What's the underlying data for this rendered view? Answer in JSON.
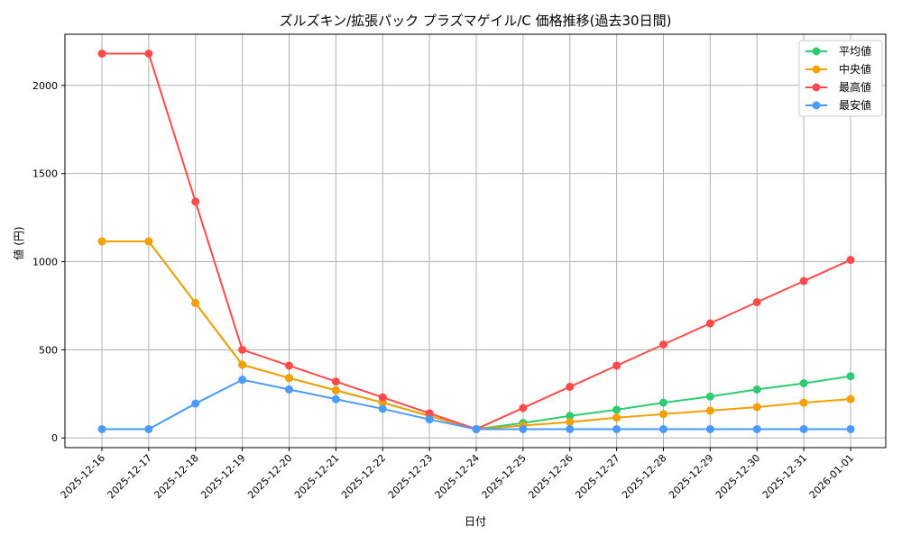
{
  "chart_data": {
    "type": "line",
    "title": "ズルズキン/拡張パック プラズマゲイル/C 価格推移(過去30日間)",
    "xlabel": "日付",
    "ylabel": "値 (円)",
    "ylim": [
      -55,
      2290
    ],
    "yticks": [
      0,
      500,
      1000,
      1500,
      2000
    ],
    "grid": true,
    "legend_position": "top-right",
    "x": [
      "2025-12-16",
      "2025-12-17",
      "2025-12-18",
      "2025-12-19",
      "2025-12-20",
      "2025-12-21",
      "2025-12-22",
      "2025-12-23",
      "2025-12-24",
      "2025-12-25",
      "2025-12-26",
      "2025-12-27",
      "2025-12-28",
      "2025-12-29",
      "2025-12-30",
      "2025-12-31",
      "2026-01-01"
    ],
    "series": [
      {
        "name": "平均値",
        "color": "#2ecc71",
        "values": [
          1115,
          1115,
          765,
          415,
          340,
          270,
          200,
          125,
          50,
          85,
          125,
          160,
          200,
          235,
          275,
          310,
          350
        ]
      },
      {
        "name": "中央値",
        "color": "#f5a000",
        "values": [
          1115,
          1115,
          765,
          415,
          340,
          270,
          200,
          125,
          50,
          70,
          90,
          115,
          135,
          155,
          175,
          200,
          220
        ]
      },
      {
        "name": "最高値",
        "color": "#ff4a4a",
        "values": [
          2180,
          2180,
          1340,
          500,
          410,
          320,
          230,
          140,
          50,
          170,
          290,
          410,
          530,
          650,
          770,
          890,
          1010
        ]
      },
      {
        "name": "最安値",
        "color": "#4a9bff",
        "values": [
          50,
          50,
          195,
          330,
          275,
          220,
          165,
          105,
          50,
          50,
          50,
          50,
          50,
          50,
          50,
          50,
          50
        ]
      }
    ]
  }
}
